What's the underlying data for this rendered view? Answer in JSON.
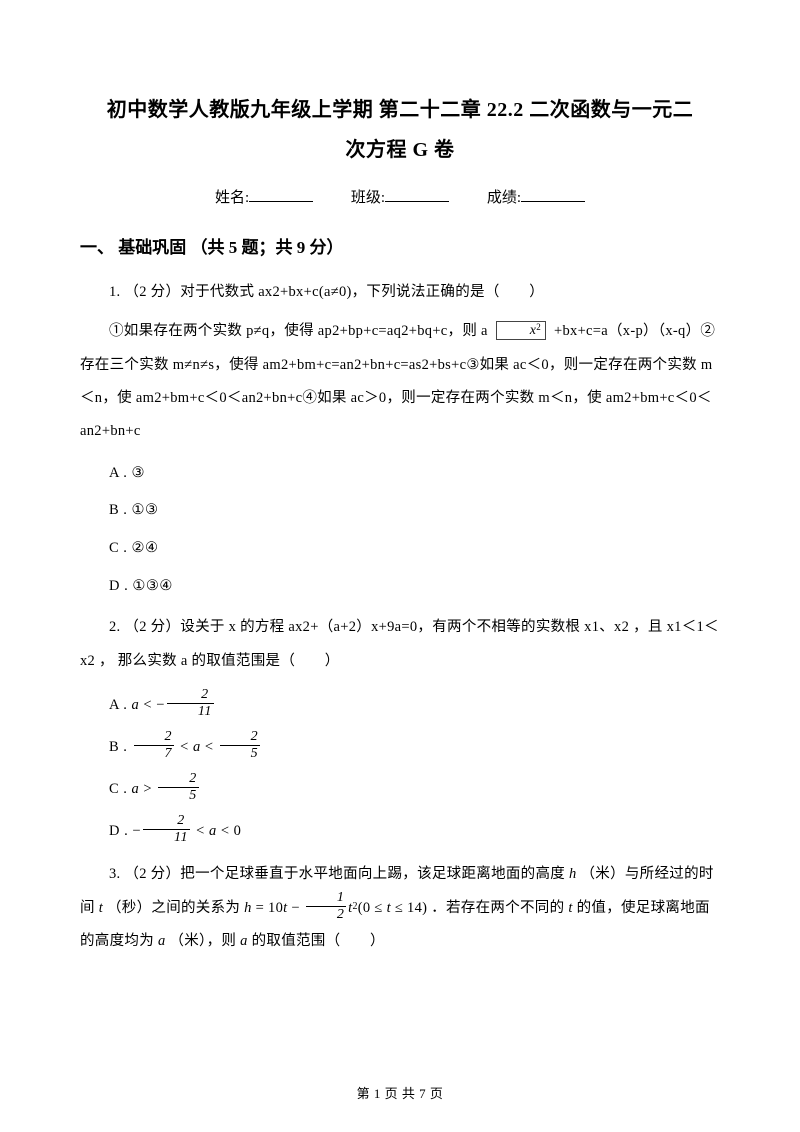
{
  "title_line1": "初中数学人教版九年级上学期 第二十二章 22.2 二次函数与一元二",
  "title_line2": "次方程 G 卷",
  "meta": {
    "name_label": "姓名:",
    "class_label": "班级:",
    "score_label": "成绩:"
  },
  "section1_head": "一、 基础巩固 （共 5 题；共 9 分）",
  "q1_p1": "1. （2 分）对于代数式 ax2+bx+c(a≠0)，下列说法正确的是（　　）",
  "q1_p2a": "①如果存在两个实数 p≠q，使得 ap2+bp+c=aq2+bq+c，则 a ",
  "q1_p2b": " +bx+c=a（x-p）（x-q）②存在三个实数 m≠n≠s，使得 am2+bm+c=an2+bn+c=as2+bs+c③如果 ac＜0，则一定存在两个实数 m＜n，使 am2+bm+c＜0＜an2+bn+c④如果 ac＞0，则一定存在两个实数 m＜n，使 am2+bm+c＜0＜an2+bn+c",
  "q1_xbox": "x",
  "q1_optA": "A . ③",
  "q1_optB": "B . ①③",
  "q1_optC": "C . ②④",
  "q1_optD": "D . ①③④",
  "q2_p1": "2. （2 分）设关于 x 的方程 ax2+（a+2）x+9a=0，有两个不相等的实数根 x1、x2 ，且 x1＜1＜x2 ， 那么实数 a 的取值范围是（　　）",
  "q2A_pre": "A . ",
  "q2A_a": "a",
  "q2A_lt": " < ",
  "q2A_neg": "−",
  "q2A_num": "2",
  "q2A_den": "11",
  "q2B_pre": "B . ",
  "q2B_f1_num": "2",
  "q2B_f1_den": "7",
  "q2B_mid": " < ",
  "q2B_a": "a",
  "q2B_lt2": " < ",
  "q2B_f2_num": "2",
  "q2B_f2_den": "5",
  "q2C_pre": "C . ",
  "q2C_a": "a",
  "q2C_gt": " > ",
  "q2C_num": "2",
  "q2C_den": "5",
  "q2D_pre": "D . ",
  "q2D_neg": "−",
  "q2D_num": "2",
  "q2D_den": "11",
  "q2D_mid": " < ",
  "q2D_a": "a",
  "q2D_lt0": " < 0",
  "q3_p1a": "3. （2 分）把一个足球垂直于水平地面向上踢，该足球距离地面的高度 ",
  "q3_h": "h",
  "q3_p1b": " （米）与所经过的时间 ",
  "q3_t": "t",
  "q3_p1c": " （秒）之间的关系为 ",
  "q3_eq_a": "h",
  "q3_eq_b": " = 10",
  "q3_eq_c": "t",
  "q3_eq_d": " − ",
  "q3_eq_num": "1",
  "q3_eq_den": "2",
  "q3_eq_e": "t",
  "q3_eq_sup": "2",
  "q3_eq_f": "(0 ≤ ",
  "q3_eq_g": "t",
  "q3_eq_h": " ≤ 14)",
  "q3_p1d": " ．若存在两个不同的 ",
  "q3_t2": "t",
  "q3_p1e": " 的值，使足球离地面的高度均为 ",
  "q3_a": "a",
  "q3_p1f": " （米），则 ",
  "q3_a2": "a",
  "q3_p1g": " 的取值范围（　　）",
  "footer_pre": "第 ",
  "footer_page": "1",
  "footer_mid": " 页 共 ",
  "footer_total": "7",
  "footer_post": " 页",
  "colors": {
    "text": "#000000",
    "background": "#ffffff",
    "rule": "#000000"
  }
}
